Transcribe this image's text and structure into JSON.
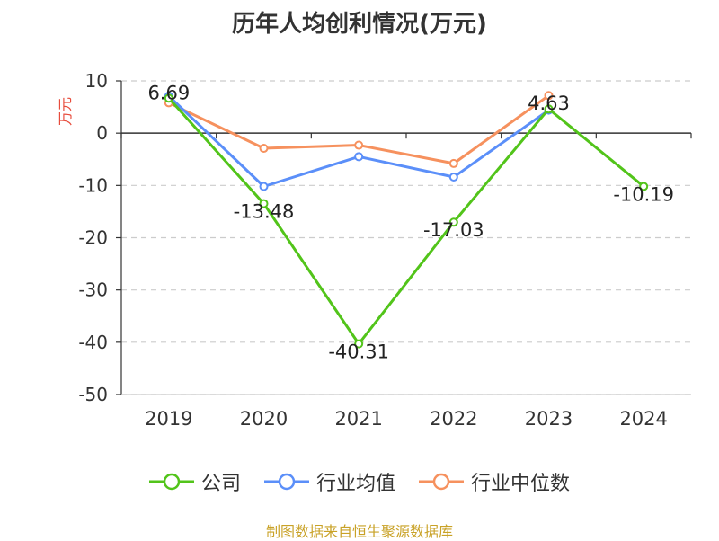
{
  "chart_data": {
    "type": "line",
    "title": "历年人均创利情况(万元)",
    "ylabel": "万元",
    "xlabel": "",
    "categories": [
      "2019",
      "2020",
      "2021",
      "2022",
      "2023",
      "2024"
    ],
    "ylim": [
      -50,
      10
    ],
    "yticks": [
      10,
      0,
      -10,
      -20,
      -30,
      -40,
      -50
    ],
    "grid": true,
    "legend_position": "bottom",
    "series": [
      {
        "name": "公司",
        "color": "#52c41a",
        "values": [
          6.69,
          -13.48,
          -40.31,
          -17.03,
          4.63,
          -10.19
        ],
        "labels": [
          "6.69",
          "-13.48",
          "-40.31",
          "-17.03",
          "4.63",
          "-10.19"
        ]
      },
      {
        "name": "行业均值",
        "color": "#5b8ff9",
        "values": [
          7.1,
          -10.2,
          -4.5,
          -8.4,
          4.4,
          null
        ]
      },
      {
        "name": "行业中位数",
        "color": "#f6915e",
        "values": [
          5.8,
          -2.9,
          -2.3,
          -5.8,
          7.2,
          null
        ]
      }
    ]
  },
  "footer": {
    "source": "制图数据来自恒生聚源数据库"
  }
}
